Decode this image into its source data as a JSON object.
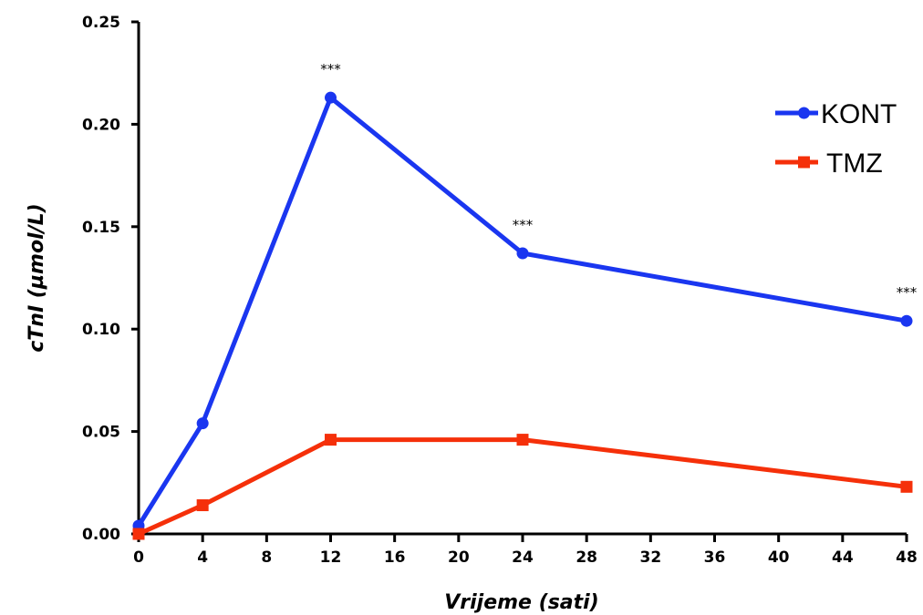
{
  "chart_data": {
    "type": "line",
    "xlabel": "Vrijeme (sati)",
    "ylabel": "cTnI (µmol/L)",
    "xlim": [
      0,
      48
    ],
    "ylim": [
      0,
      0.25
    ],
    "x_ticks": [
      "0",
      "4",
      "8",
      "12",
      "16",
      "20",
      "24",
      "28",
      "32",
      "36",
      "40",
      "44",
      "48"
    ],
    "y_ticks": [
      "0.00",
      "0.05",
      "0.10",
      "0.15",
      "0.20",
      "0.25"
    ],
    "grid": false,
    "legend_position": "top-right",
    "series": [
      {
        "name": "KONT",
        "color": "#1a36f0",
        "marker": "circle",
        "x": [
          0,
          4,
          12,
          24,
          48
        ],
        "y": [
          0.004,
          0.054,
          0.213,
          0.137,
          0.104
        ]
      },
      {
        "name": "TMZ",
        "color": "#f5300a",
        "marker": "square",
        "x": [
          0,
          4,
          12,
          24,
          48
        ],
        "y": [
          0.0,
          0.014,
          0.046,
          0.046,
          0.023
        ]
      }
    ],
    "annotations": [
      {
        "x": 12,
        "y": 0.213,
        "text": "***"
      },
      {
        "x": 24,
        "y": 0.137,
        "text": "***"
      },
      {
        "x": 48,
        "y": 0.104,
        "text": "***"
      }
    ]
  }
}
